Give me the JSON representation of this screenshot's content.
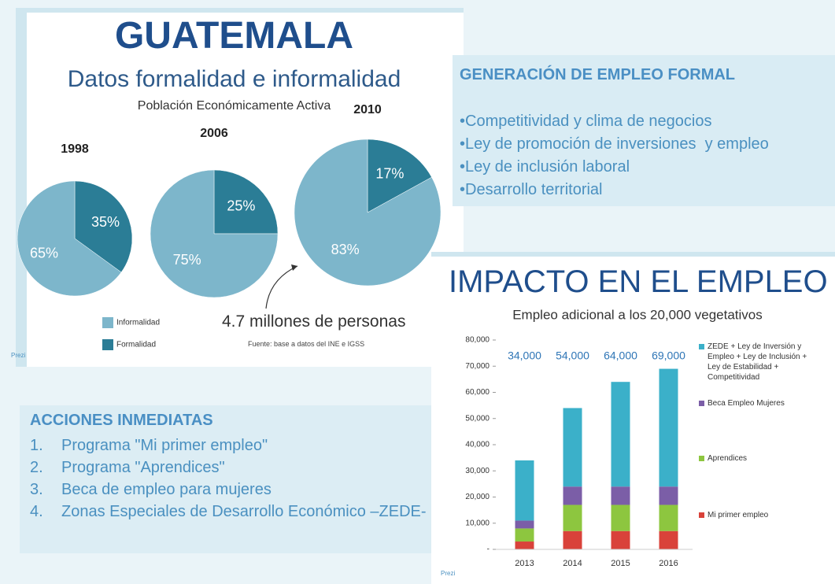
{
  "left_slide": {
    "title": "GUATEMALA",
    "subtitle": "Datos formalidad e informalidad",
    "caption": "Población Económicamente Activa",
    "note": "4.7 millones de personas",
    "source": "Fuente: base a datos del INE e IGSS",
    "logo": "Prezi"
  },
  "chart_data": [
    {
      "type": "pie",
      "title": "1998",
      "categories": [
        "Informalidad",
        "Formalidad"
      ],
      "values": [
        65,
        35
      ],
      "value_labels": [
        "65%",
        "35%"
      ],
      "colors": [
        "#7db6cb",
        "#2b7d96"
      ]
    },
    {
      "type": "pie",
      "title": "2006",
      "categories": [
        "Informalidad",
        "Formalidad"
      ],
      "values": [
        75,
        25
      ],
      "value_labels": [
        "75%",
        "25%"
      ],
      "colors": [
        "#7db6cb",
        "#2b7d96"
      ]
    },
    {
      "type": "pie",
      "title": "2010",
      "categories": [
        "Informalidad",
        "Formalidad"
      ],
      "values": [
        83,
        17
      ],
      "value_labels": [
        "83%",
        "17%"
      ],
      "colors": [
        "#7db6cb",
        "#2b7d96"
      ]
    },
    {
      "type": "bar",
      "stacked": true,
      "title": "Empleo adicional a los 20,000 vegetativos",
      "categories": [
        "2013",
        "2014",
        "2015",
        "2016"
      ],
      "series": [
        {
          "name": "Mi primer empleo",
          "color": "#d9423a",
          "values": [
            3000,
            7000,
            7000,
            7000
          ]
        },
        {
          "name": "Aprendices",
          "color": "#8dc63f",
          "values": [
            5000,
            10000,
            10000,
            10000
          ]
        },
        {
          "name": "Beca Empleo Mujeres",
          "color": "#7b5ea7",
          "values": [
            3000,
            7000,
            7000,
            7000
          ]
        },
        {
          "name": "ZEDE + Ley de Inversión y Empleo + Ley de Inclusión + Ley de Estabilidad + Competitividad",
          "color": "#3bb0c9",
          "values": [
            23000,
            30000,
            40000,
            45000
          ]
        }
      ],
      "annotations": [
        "34,000",
        "54,000",
        "64,000",
        "69,000"
      ],
      "ylim": [
        0,
        80000
      ],
      "yticks": [
        {
          "value": 0,
          "label": "-"
        },
        {
          "value": 10000,
          "label": "10,000"
        },
        {
          "value": 20000,
          "label": "20,000"
        },
        {
          "value": 30000,
          "label": "30,000"
        },
        {
          "value": 40000,
          "label": "40,000"
        },
        {
          "value": 50000,
          "label": "50,000"
        },
        {
          "value": 60000,
          "label": "60,000"
        },
        {
          "value": 70000,
          "label": "70,000"
        },
        {
          "value": 80000,
          "label": "80,000"
        }
      ],
      "grid": false
    }
  ],
  "formal_panel": {
    "heading": "GENERACIÓN DE EMPLEO FORMAL",
    "items": [
      "•Competitividad y clima de negocios",
      "•Ley de promoción de inversiones  y empleo",
      "•Ley de inclusión laboral",
      "•Desarrollo territorial"
    ]
  },
  "actions_panel": {
    "heading": "ACCIONES INMEDIATAS",
    "items": [
      {
        "number": "1.",
        "text": "Programa \"Mi primer empleo\""
      },
      {
        "number": "2.",
        "text": "Programa \"Aprendices\""
      },
      {
        "number": "3.",
        "text": "Beca de empleo para mujeres"
      },
      {
        "number": "4.",
        "text": "Zonas Especiales de Desarrollo Económico –ZEDE-"
      }
    ]
  },
  "right_slide": {
    "title": "IMPACTO EN EL EMPLEO",
    "logo": "Prezi"
  }
}
